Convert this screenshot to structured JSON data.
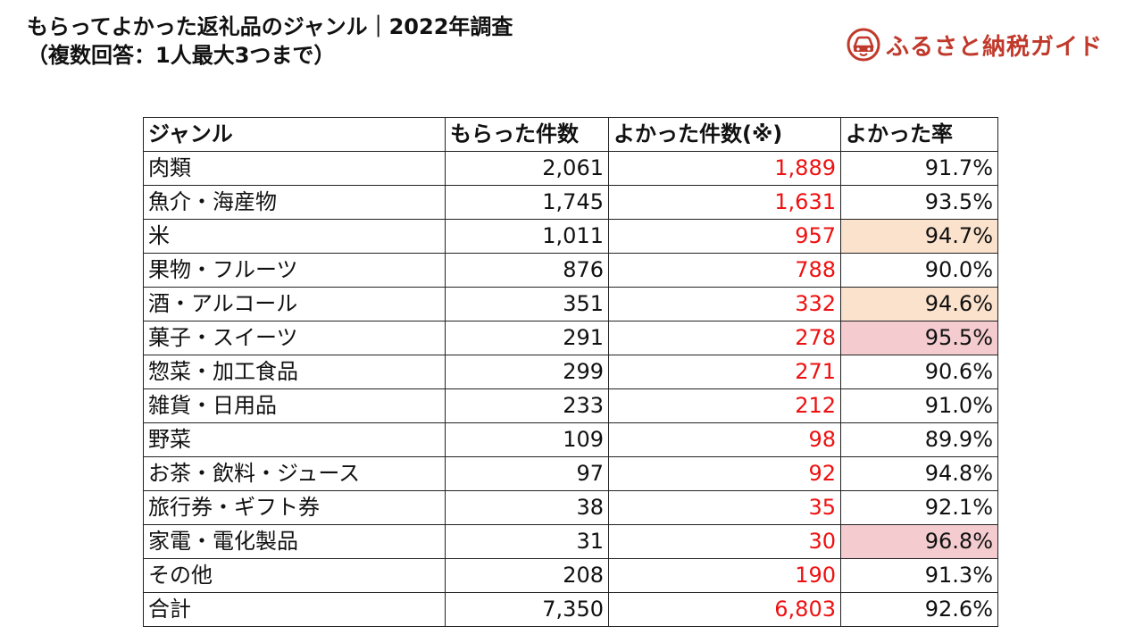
{
  "title": {
    "line1": "もらってよかった返礼品のジャンル｜2022年調査",
    "line2": "（複数回答：1人最大3つまで）"
  },
  "logo": {
    "text": "ふるさと納税ガイド",
    "icon": "car-face-logo-icon",
    "color": "#c0392b"
  },
  "colors": {
    "highlight_orange": "#fbe2cd",
    "highlight_pink": "#f4cccf",
    "good_count_text": "#ee1111"
  },
  "table": {
    "headers": [
      "ジャンル",
      "もらった件数",
      "よかった件数(※)",
      "よかった率"
    ],
    "rows": [
      {
        "genre": "肉類",
        "received": "2,061",
        "good": "1,889",
        "rate": "91.7%",
        "highlight": "none"
      },
      {
        "genre": "魚介・海産物",
        "received": "1,745",
        "good": "1,631",
        "rate": "93.5%",
        "highlight": "none"
      },
      {
        "genre": "米",
        "received": "1,011",
        "good": "957",
        "rate": "94.7%",
        "highlight": "orange"
      },
      {
        "genre": "果物・フルーツ",
        "received": "876",
        "good": "788",
        "rate": "90.0%",
        "highlight": "none"
      },
      {
        "genre": "酒・アルコール",
        "received": "351",
        "good": "332",
        "rate": "94.6%",
        "highlight": "orange"
      },
      {
        "genre": "菓子・スイーツ",
        "received": "291",
        "good": "278",
        "rate": "95.5%",
        "highlight": "pink"
      },
      {
        "genre": "惣菜・加工食品",
        "received": "299",
        "good": "271",
        "rate": "90.6%",
        "highlight": "none"
      },
      {
        "genre": "雑貨・日用品",
        "received": "233",
        "good": "212",
        "rate": "91.0%",
        "highlight": "none"
      },
      {
        "genre": "野菜",
        "received": "109",
        "good": "98",
        "rate": "89.9%",
        "highlight": "none"
      },
      {
        "genre": "お茶・飲料・ジュース",
        "received": "97",
        "good": "92",
        "rate": "94.8%",
        "highlight": "none"
      },
      {
        "genre": "旅行券・ギフト券",
        "received": "38",
        "good": "35",
        "rate": "92.1%",
        "highlight": "none"
      },
      {
        "genre": "家電・電化製品",
        "received": "31",
        "good": "30",
        "rate": "96.8%",
        "highlight": "pink"
      },
      {
        "genre": "その他",
        "received": "208",
        "good": "190",
        "rate": "91.3%",
        "highlight": "none"
      },
      {
        "genre": "合計",
        "received": "7,350",
        "good": "6,803",
        "rate": "92.6%",
        "highlight": "none"
      }
    ]
  }
}
